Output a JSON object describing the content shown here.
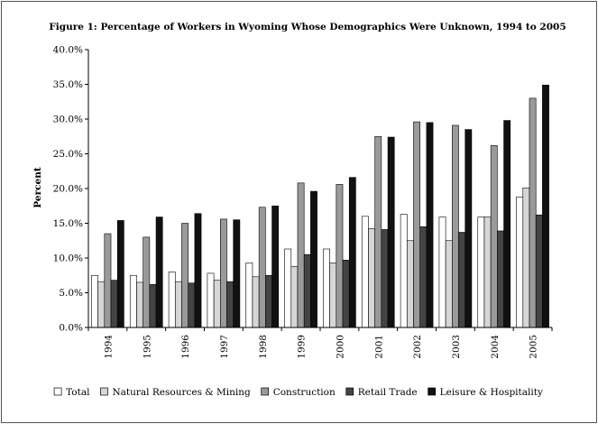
{
  "chart_data": {
    "type": "bar",
    "title": "Figure 1: Percentage of Workers in Wyoming Whose Demographics Were Unknown, 1994 to 2005",
    "xlabel": "",
    "ylabel": "Percent",
    "ylim": [
      0,
      40
    ],
    "yticks": [
      "0.0%",
      "5.0%",
      "10.0%",
      "15.0%",
      "20.0%",
      "25.0%",
      "30.0%",
      "35.0%",
      "40.0%"
    ],
    "grid": false,
    "legend_position": "bottom",
    "categories": [
      "1994",
      "1995",
      "1996",
      "1997",
      "1998",
      "1999",
      "2000",
      "2001",
      "2002",
      "2003",
      "2004",
      "2005"
    ],
    "series": [
      {
        "name": "Total",
        "color": "#ffffff",
        "values": [
          7.5,
          7.5,
          8.0,
          7.8,
          9.3,
          11.3,
          11.3,
          16.0,
          16.3,
          15.9,
          15.9,
          18.8
        ]
      },
      {
        "name": "Natural Resources & Mining",
        "color": "#d6d6d6",
        "values": [
          6.6,
          6.5,
          6.6,
          6.8,
          7.3,
          8.8,
          9.3,
          14.2,
          12.5,
          12.5,
          15.9,
          20.1
        ]
      },
      {
        "name": "Construction",
        "color": "#9a9a9a",
        "values": [
          13.5,
          13.0,
          15.0,
          15.6,
          17.3,
          20.8,
          20.6,
          27.5,
          29.6,
          29.1,
          26.2,
          33.0
        ]
      },
      {
        "name": "Retail Trade",
        "color": "#444444",
        "values": [
          6.8,
          6.2,
          6.4,
          6.6,
          7.5,
          10.5,
          9.7,
          14.1,
          14.5,
          13.7,
          13.9,
          16.2
        ]
      },
      {
        "name": "Leisure & Hospitality",
        "color": "#111111",
        "values": [
          15.4,
          15.9,
          16.4,
          15.5,
          17.5,
          19.6,
          21.6,
          27.4,
          29.5,
          28.5,
          29.8,
          34.9
        ]
      }
    ]
  }
}
